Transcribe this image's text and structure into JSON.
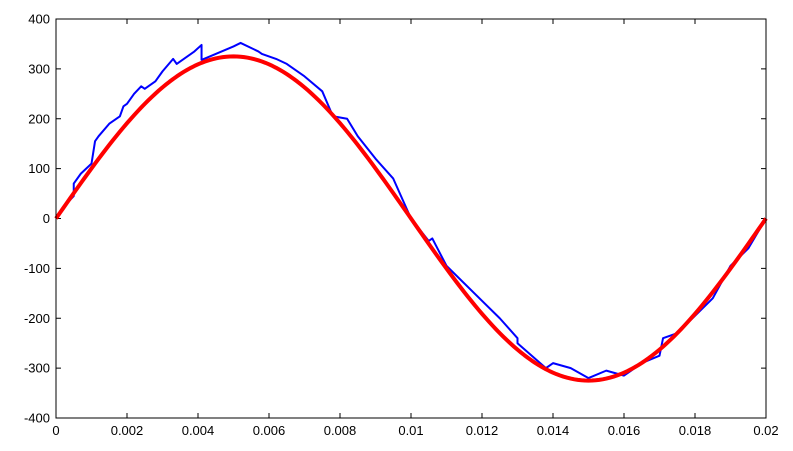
{
  "chart_data": {
    "type": "line",
    "title": "",
    "xlabel": "",
    "ylabel": "",
    "xlim": [
      0,
      0.02
    ],
    "ylim": [
      -400,
      400
    ],
    "grid": false,
    "x_ticks": [
      0,
      0.002,
      0.004,
      0.006,
      0.008,
      0.01,
      0.012,
      0.014,
      0.016,
      0.018,
      0.02
    ],
    "x_tick_labels": [
      "0",
      "0.002",
      "0.004",
      "0.006",
      "0.008",
      "0.01",
      "0.012",
      "0.014",
      "0.016",
      "0.018",
      "0.02"
    ],
    "y_ticks": [
      -400,
      -300,
      -200,
      -100,
      0,
      100,
      200,
      300,
      400
    ],
    "y_tick_labels": [
      "-400",
      "-300",
      "-200",
      "-100",
      "0",
      "100",
      "200",
      "300",
      "400"
    ],
    "series": [
      {
        "color": "#0000ff",
        "x": [
          0,
          0.0003,
          0.0005,
          0.0005,
          0.0007,
          0.001,
          0.0011,
          0.0012,
          0.0015,
          0.0018,
          0.0019,
          0.002,
          0.0022,
          0.0024,
          0.0025,
          0.0028,
          0.003,
          0.0033,
          0.0034,
          0.0036,
          0.0039,
          0.0041,
          0.0041,
          0.0045,
          0.005,
          0.0052,
          0.0057,
          0.0058,
          0.0062,
          0.0065,
          0.007,
          0.0075,
          0.0078,
          0.0082,
          0.0085,
          0.009,
          0.0095,
          0.01,
          0.0105,
          0.0106,
          0.011,
          0.012,
          0.0125,
          0.013,
          0.013,
          0.0138,
          0.014,
          0.0145,
          0.015,
          0.0155,
          0.016,
          0.0162,
          0.0165,
          0.017,
          0.0171,
          0.0175,
          0.018,
          0.0185,
          0.019,
          0.0195,
          0.02
        ],
        "y": [
          0,
          30,
          45,
          70,
          90,
          110,
          155,
          165,
          190,
          205,
          225,
          230,
          250,
          265,
          260,
          275,
          295,
          320,
          310,
          320,
          335,
          348,
          318,
          330,
          345,
          352,
          335,
          330,
          320,
          310,
          285,
          255,
          205,
          200,
          165,
          120,
          80,
          0,
          -45,
          -40,
          -95,
          -165,
          -200,
          -240,
          -250,
          -300,
          -290,
          -300,
          -320,
          -305,
          -315,
          -305,
          -290,
          -275,
          -240,
          -230,
          -195,
          -160,
          -95,
          -60,
          0
        ]
      },
      {
        "color": "#ff0000",
        "type": "sine",
        "amplitude": 325,
        "period": 0.02,
        "x_start": 0,
        "x_end": 0.02
      }
    ]
  }
}
